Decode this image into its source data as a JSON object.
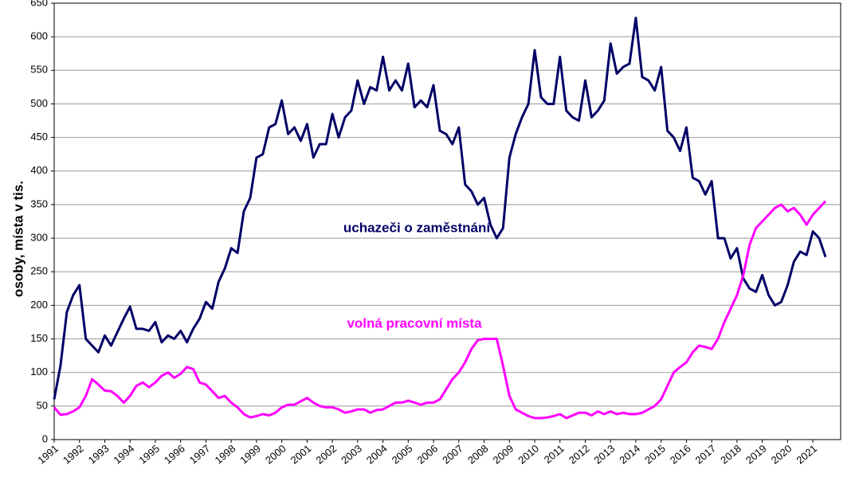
{
  "chart_data": {
    "type": "line",
    "ylabel": "osoby, místa v tis.",
    "annotations": [
      "uchazeči o zaměstnání",
      "volná pracovní místa"
    ],
    "x": [
      1991,
      1991.25,
      1991.5,
      1991.75,
      1992,
      1992.25,
      1992.5,
      1992.75,
      1993,
      1993.25,
      1993.5,
      1993.75,
      1994,
      1994.25,
      1994.5,
      1994.75,
      1995,
      1995.25,
      1995.5,
      1995.75,
      1996,
      1996.25,
      1996.5,
      1996.75,
      1997,
      1997.25,
      1997.5,
      1997.75,
      1998,
      1998.25,
      1998.5,
      1998.75,
      1999,
      1999.25,
      1999.5,
      1999.75,
      2000,
      2000.25,
      2000.5,
      2000.75,
      2001,
      2001.25,
      2001.5,
      2001.75,
      2002,
      2002.25,
      2002.5,
      2002.75,
      2003,
      2003.25,
      2003.5,
      2003.75,
      2004,
      2004.25,
      2004.5,
      2004.75,
      2005,
      2005.25,
      2005.5,
      2005.75,
      2006,
      2006.25,
      2006.5,
      2006.75,
      2007,
      2007.25,
      2007.5,
      2007.75,
      2008,
      2008.25,
      2008.5,
      2008.75,
      2009,
      2009.25,
      2009.5,
      2009.75,
      2010,
      2010.25,
      2010.5,
      2010.75,
      2011,
      2011.25,
      2011.5,
      2011.75,
      2012,
      2012.25,
      2012.5,
      2012.75,
      2013,
      2013.25,
      2013.5,
      2013.75,
      2014,
      2014.25,
      2014.5,
      2014.75,
      2015,
      2015.25,
      2015.5,
      2015.75,
      2016,
      2016.25,
      2016.5,
      2016.75,
      2017,
      2017.25,
      2017.5,
      2017.75,
      2018,
      2018.25,
      2018.5,
      2018.75,
      2019,
      2019.25,
      2019.5,
      2019.75,
      2020,
      2020.25,
      2020.5,
      2020.75,
      2021,
      2021.25,
      2021.5
    ],
    "series": [
      {
        "name": "uchazeči o zaměstnání",
        "color": "#000066",
        "values": [
          60,
          110,
          190,
          215,
          230,
          150,
          140,
          130,
          155,
          140,
          160,
          180,
          198,
          165,
          165,
          162,
          175,
          145,
          155,
          150,
          162,
          145,
          165,
          180,
          205,
          195,
          235,
          255,
          285,
          278,
          340,
          360,
          420,
          425,
          465,
          470,
          505,
          455,
          465,
          445,
          470,
          420,
          440,
          440,
          485,
          450,
          480,
          490,
          535,
          500,
          525,
          520,
          570,
          520,
          535,
          520,
          560,
          495,
          505,
          495,
          528,
          460,
          455,
          440,
          465,
          380,
          370,
          350,
          360,
          320,
          300,
          315,
          420,
          455,
          480,
          500,
          580,
          510,
          500,
          500,
          570,
          490,
          480,
          475,
          535,
          480,
          490,
          505,
          590,
          545,
          555,
          560,
          628,
          540,
          535,
          520,
          555,
          460,
          450,
          430,
          465,
          390,
          385,
          365,
          385,
          300,
          300,
          270,
          285,
          240,
          225,
          220,
          245,
          215,
          200,
          205,
          230,
          265,
          280,
          275,
          310,
          300,
          272
        ]
      },
      {
        "name": "volná pracovní místa",
        "color": "#ff00ff",
        "values": [
          48,
          37,
          38,
          42,
          48,
          65,
          90,
          82,
          73,
          72,
          65,
          55,
          65,
          80,
          85,
          78,
          85,
          95,
          100,
          92,
          98,
          108,
          105,
          85,
          82,
          72,
          62,
          65,
          55,
          48,
          38,
          33,
          35,
          38,
          36,
          40,
          48,
          52,
          52,
          57,
          62,
          55,
          50,
          48,
          48,
          45,
          40,
          42,
          45,
          45,
          40,
          44,
          45,
          50,
          55,
          55,
          58,
          55,
          52,
          55,
          55,
          60,
          75,
          90,
          100,
          115,
          135,
          148,
          150,
          150,
          150,
          110,
          65,
          45,
          40,
          35,
          32,
          32,
          33,
          35,
          38,
          32,
          36,
          40,
          40,
          36,
          42,
          38,
          42,
          38,
          40,
          38,
          38,
          40,
          45,
          50,
          60,
          80,
          100,
          108,
          115,
          130,
          140,
          138,
          135,
          150,
          175,
          195,
          215,
          245,
          290,
          315,
          325,
          335,
          345,
          350,
          340,
          345,
          335,
          320,
          335,
          345,
          355
        ]
      }
    ],
    "xlim": [
      1991,
      2022.1
    ],
    "xticks": [
      1991,
      1992,
      1993,
      1994,
      1995,
      1996,
      1997,
      1998,
      1999,
      2000,
      2001,
      2002,
      2003,
      2004,
      2005,
      2006,
      2007,
      2008,
      2009,
      2010,
      2011,
      2012,
      2013,
      2014,
      2015,
      2016,
      2017,
      2018,
      2019,
      2020,
      2021
    ],
    "ylim": [
      0,
      650
    ],
    "yticks": [
      0,
      50,
      100,
      150,
      200,
      250,
      300,
      350,
      400,
      450,
      500,
      550,
      600,
      650
    ],
    "grid": true
  }
}
